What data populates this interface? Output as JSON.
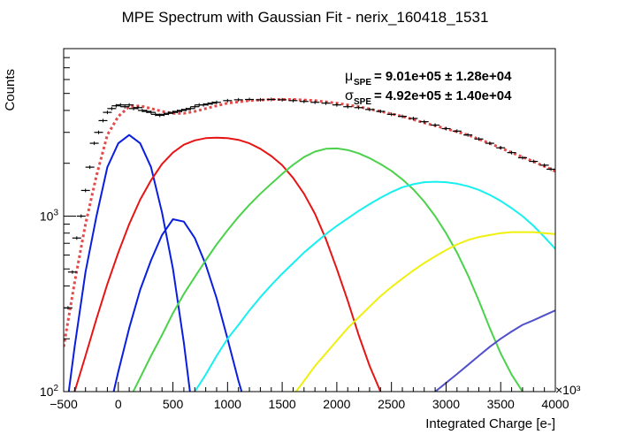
{
  "chart_data": {
    "type": "line",
    "title": "MPE Spectrum with Gaussian Fit - nerix_160418_1531",
    "xlabel": "Integrated Charge [e-]",
    "ylabel": "Counts",
    "x_multiplier": "×10³",
    "x_range": [
      -500,
      4000
    ],
    "y_range": [
      100,
      9000
    ],
    "y_scale": "log",
    "x_ticks": [
      -500,
      0,
      500,
      1000,
      1500,
      2000,
      2500,
      3000,
      3500,
      4000
    ],
    "x_tick_labels": [
      "−500",
      "0",
      "500",
      "1000",
      "1500",
      "2000",
      "2500",
      "3000",
      "3500",
      "4000"
    ],
    "y_major_ticks": [
      {
        "value": 100,
        "base": "10",
        "exp": "2"
      },
      {
        "value": 1000,
        "base": "10",
        "exp": "3"
      }
    ],
    "grid": false,
    "annotations": {
      "mu": {
        "symbol": "μ",
        "sub": "SPE",
        "text": "= 9.01e+05 ± 1.28e+04"
      },
      "sigma": {
        "symbol": "σ",
        "sub": "SPE",
        "text": "= 4.92e+05 ± 1.40e+04"
      }
    },
    "data_points": {
      "x": [
        -460,
        -420,
        -380,
        -340,
        -300,
        -260,
        -220,
        -180,
        -140,
        -100,
        -60,
        -20,
        20,
        60,
        100,
        140,
        180,
        220,
        260,
        300,
        340,
        380,
        420,
        460,
        500,
        540,
        580,
        620,
        660,
        700,
        740,
        780,
        820,
        860,
        900,
        1000,
        1100,
        1200,
        1300,
        1400,
        1500,
        1600,
        1700,
        1800,
        1900,
        2000,
        2100,
        2200,
        2300,
        2400,
        2500,
        2600,
        2700,
        2800,
        2900,
        3000,
        3100,
        3200,
        3300,
        3400,
        3500,
        3600,
        3700,
        3800,
        3900,
        3960
      ],
      "y": [
        300,
        480,
        750,
        1000,
        1400,
        1900,
        2600,
        3000,
        3500,
        3900,
        4100,
        4250,
        4300,
        4200,
        4300,
        4100,
        4150,
        4000,
        3950,
        3900,
        3800,
        3750,
        3800,
        3850,
        3900,
        3950,
        4000,
        4050,
        4100,
        4200,
        4300,
        4300,
        4350,
        4400,
        4450,
        4550,
        4600,
        4620,
        4600,
        4620,
        4600,
        4550,
        4500,
        4450,
        4400,
        4300,
        4200,
        4150,
        4050,
        3950,
        3800,
        3700,
        3600,
        3450,
        3300,
        3150,
        3050,
        2900,
        2750,
        2600,
        2450,
        2300,
        2150,
        2050,
        1950,
        1850
      ]
    },
    "series": [
      {
        "color": "#e34a4a",
        "style": "dotted",
        "x": [
          -500,
          -400,
          -300,
          -200,
          -100,
          0,
          100,
          200,
          300,
          400,
          500,
          600,
          700,
          800,
          900,
          1000,
          1200,
          1400,
          1600,
          1800,
          2000,
          2200,
          2400,
          2600,
          2800,
          3000,
          3200,
          3400,
          3600,
          3800,
          4000
        ],
        "y": [
          180,
          420,
          900,
          1700,
          2900,
          3700,
          4200,
          4250,
          4100,
          3950,
          3850,
          3850,
          3950,
          4100,
          4250,
          4400,
          4550,
          4620,
          4620,
          4550,
          4400,
          4200,
          3950,
          3700,
          3400,
          3150,
          2900,
          2600,
          2300,
          2050,
          1800
        ]
      },
      {
        "color": "#0a1ee0",
        "x": [
          -500,
          -400,
          -300,
          -200,
          -100,
          0,
          100,
          200,
          300,
          400,
          500,
          600,
          700
        ],
        "y": [
          60,
          180,
          480,
          1000,
          1900,
          2600,
          2900,
          2600,
          1900,
          1050,
          500,
          190,
          60
        ]
      },
      {
        "color": "#0a1ee0",
        "x": [
          -100,
          0,
          100,
          200,
          300,
          400,
          500,
          600,
          700,
          800,
          900,
          1000,
          1100,
          1150
        ],
        "y": [
          70,
          130,
          230,
          380,
          560,
          780,
          960,
          930,
          750,
          530,
          340,
          200,
          115,
          90
        ]
      },
      {
        "color": "#e81414",
        "x": [
          -400,
          -300,
          -200,
          -100,
          0,
          100,
          200,
          300,
          400,
          500,
          600,
          700,
          800,
          900,
          1000,
          1100,
          1200,
          1300,
          1400,
          1500,
          1600,
          1700,
          1800,
          1900,
          2000,
          2100,
          2200,
          2300,
          2400,
          2450
        ],
        "y": [
          100,
          160,
          260,
          410,
          620,
          900,
          1240,
          1600,
          1980,
          2300,
          2550,
          2700,
          2780,
          2800,
          2780,
          2720,
          2600,
          2420,
          2200,
          1950,
          1650,
          1340,
          1030,
          740,
          500,
          330,
          210,
          140,
          100,
          90
        ]
      },
      {
        "color": "#4bd24b",
        "x": [
          100,
          200,
          300,
          400,
          500,
          600,
          700,
          800,
          900,
          1000,
          1100,
          1200,
          1300,
          1400,
          1500,
          1600,
          1700,
          1800,
          1900,
          2000,
          2100,
          2200,
          2300,
          2400,
          2500,
          2600,
          2700,
          2800,
          2900,
          3000,
          3100,
          3200,
          3300,
          3400,
          3500,
          3600,
          3700,
          3800
        ],
        "y": [
          90,
          120,
          160,
          210,
          280,
          360,
          450,
          560,
          690,
          830,
          990,
          1160,
          1340,
          1530,
          1740,
          1960,
          2170,
          2330,
          2420,
          2430,
          2380,
          2280,
          2140,
          1980,
          1810,
          1620,
          1420,
          1210,
          1000,
          800,
          620,
          460,
          330,
          230,
          165,
          125,
          100,
          90
        ]
      },
      {
        "color": "#18f0f0",
        "x": [
          700,
          800,
          900,
          1000,
          1100,
          1200,
          1300,
          1400,
          1500,
          1600,
          1700,
          1800,
          1900,
          2000,
          2100,
          2200,
          2300,
          2400,
          2500,
          2600,
          2700,
          2800,
          2900,
          3000,
          3100,
          3200,
          3300,
          3400,
          3500,
          3600,
          3700,
          3800,
          3900,
          4000
        ],
        "y": [
          100,
          125,
          160,
          200,
          240,
          290,
          345,
          405,
          470,
          540,
          620,
          700,
          790,
          880,
          970,
          1070,
          1170,
          1270,
          1370,
          1460,
          1520,
          1560,
          1570,
          1560,
          1530,
          1480,
          1410,
          1320,
          1220,
          1110,
          1000,
          880,
          760,
          650
        ]
      },
      {
        "color": "#f0f00f",
        "x": [
          1600,
          1700,
          1800,
          1900,
          2000,
          2100,
          2200,
          2300,
          2400,
          2500,
          2600,
          2700,
          2800,
          2900,
          3000,
          3100,
          3200,
          3300,
          3400,
          3500,
          3600,
          3700,
          3800,
          3900,
          4000
        ],
        "y": [
          95,
          115,
          140,
          165,
          195,
          230,
          265,
          305,
          350,
          395,
          440,
          490,
          540,
          590,
          640,
          690,
          730,
          760,
          780,
          800,
          810,
          810,
          810,
          800,
          790
        ]
      },
      {
        "color": "#5050cc",
        "x": [
          2800,
          2900,
          3000,
          3100,
          3200,
          3300,
          3400,
          3500,
          3600,
          3700,
          3800,
          3900,
          4000
        ],
        "y": [
          90,
          100,
          112,
          126,
          142,
          160,
          180,
          200,
          220,
          240,
          255,
          272,
          290
        ]
      }
    ]
  }
}
